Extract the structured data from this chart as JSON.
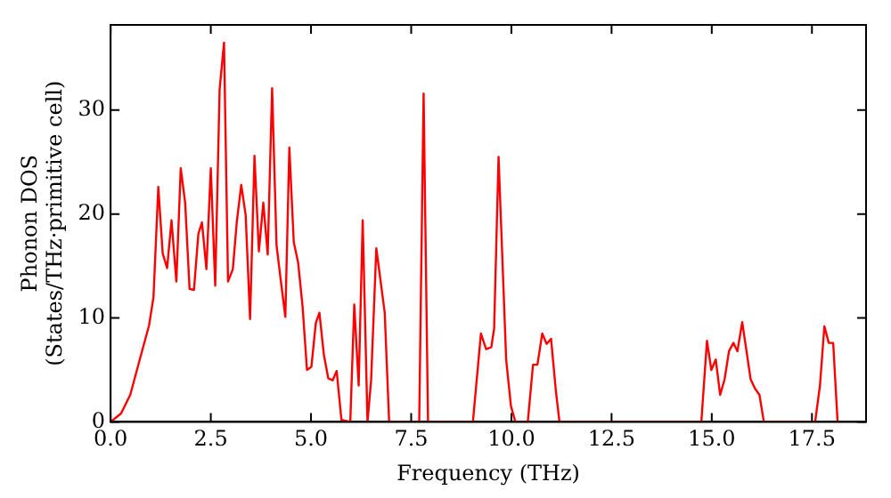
{
  "chart_data": {
    "type": "line",
    "xlabel": "Frequency (THz)",
    "ylabel": "Phonon DOS\n(States/THz·primitive cell)",
    "xlim": [
      0,
      18.85
    ],
    "ylim": [
      0,
      38.2
    ],
    "xticks": [
      {
        "value": 0,
        "label": "0.0"
      },
      {
        "value": 2.5,
        "label": "2.5"
      },
      {
        "value": 5,
        "label": "5.0"
      },
      {
        "value": 7.5,
        "label": "7.5"
      },
      {
        "value": 10,
        "label": "10.0"
      },
      {
        "value": 12.5,
        "label": "12.5"
      },
      {
        "value": 15,
        "label": "15.0"
      },
      {
        "value": 17.5,
        "label": "17.5"
      }
    ],
    "yticks": [
      0,
      10,
      20,
      30
    ],
    "grid": false,
    "legend": false,
    "marker": "none",
    "line_style": "solid",
    "series": [
      {
        "color": "#ff0000",
        "x": [
          0,
          0.26,
          0.49,
          0.72,
          0.96,
          1.07,
          1.19,
          1.3,
          1.41,
          1.52,
          1.64,
          1.75,
          1.86,
          1.97,
          2.08,
          2.19,
          2.28,
          2.39,
          2.5,
          2.61,
          2.72,
          2.83,
          2.93,
          3.05,
          3.15,
          3.26,
          3.37,
          3.48,
          3.59,
          3.7,
          3.81,
          3.92,
          4.03,
          4.14,
          4.24,
          4.36,
          4.46,
          4.57,
          4.68,
          4.79,
          4.9,
          5.01,
          5.12,
          5.21,
          5.32,
          5.43,
          5.54,
          5.64,
          5.76,
          5.98,
          6.08,
          6.19,
          6.29,
          6.41,
          6.5,
          6.63,
          6.84,
          6.95,
          7.7,
          7.81,
          7.92,
          9.04,
          9.24,
          9.37,
          9.5,
          9.57,
          9.68,
          9.87,
          9.99,
          10.1,
          10.41,
          10.54,
          10.65,
          10.77,
          10.88,
          10.99,
          11.11,
          11.2,
          14.74,
          14.88,
          14.99,
          15.1,
          15.21,
          15.32,
          15.43,
          15.54,
          15.64,
          15.76,
          15.86,
          15.97,
          16.08,
          16.19,
          16.3,
          17.58,
          17.7,
          17.81,
          17.92,
          18.03,
          18.14
        ],
        "values": [
          0,
          0.8,
          2.6,
          5.9,
          9.3,
          12,
          22.6,
          16.2,
          14.8,
          19.4,
          13.5,
          24.4,
          21.1,
          12.8,
          12.7,
          18.1,
          19.2,
          14.7,
          24.4,
          13.1,
          32,
          36.5,
          13.5,
          14.7,
          19.3,
          22.8,
          19.9,
          9.9,
          25.6,
          16.4,
          21.1,
          16.1,
          32.1,
          17,
          13.8,
          10.1,
          26.4,
          17.3,
          15.3,
          11.1,
          5,
          5.3,
          9.5,
          10.5,
          6.5,
          4.2,
          4,
          4.9,
          0.2,
          0,
          11.3,
          3.5,
          19.4,
          0,
          4,
          16.7,
          10.5,
          0,
          0,
          31.6,
          0,
          0,
          8.5,
          7,
          7.2,
          9,
          25.5,
          6,
          1.5,
          0,
          0,
          5.5,
          5.5,
          8.5,
          7.5,
          8,
          3,
          0,
          0,
          7.8,
          5,
          6,
          2.6,
          4.1,
          6.8,
          7.6,
          6.8,
          9.6,
          7,
          4.1,
          3.2,
          2.6,
          0,
          0,
          3.5,
          9.2,
          7.6,
          7.6,
          0
        ]
      }
    ]
  }
}
